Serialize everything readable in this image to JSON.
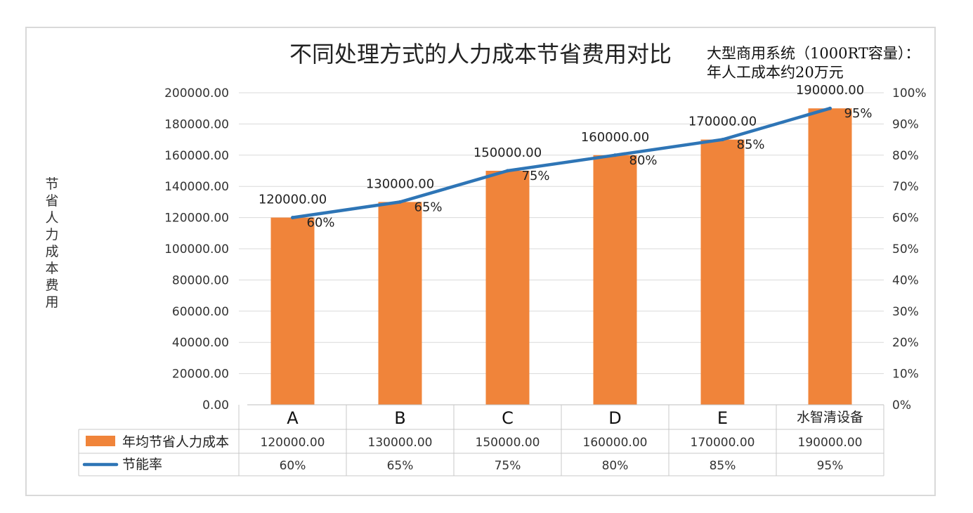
{
  "chart_data": {
    "type": "bar",
    "title": "不同处理方式的人力成本节省费用对比",
    "note_lines": [
      "大型商用系统（1000RT容量）：",
      "年人工成本约20万元"
    ],
    "ylabel": "节省人力成本费用",
    "categories": [
      "A",
      "B",
      "C",
      "D",
      "E",
      "水智清设备"
    ],
    "ylim": [
      0,
      200000
    ],
    "y2lim": [
      0,
      1
    ],
    "y_ticks": [
      "0.00",
      "20000.00",
      "40000.00",
      "60000.00",
      "80000.00",
      "100000.00",
      "120000.00",
      "140000.00",
      "160000.00",
      "180000.00",
      "200000.00"
    ],
    "y2_ticks": [
      "0%",
      "10%",
      "20%",
      "30%",
      "40%",
      "50%",
      "60%",
      "70%",
      "80%",
      "90%",
      "100%"
    ],
    "series": [
      {
        "name": "年均节省人力成本",
        "type": "bar",
        "axis": "left",
        "color": "#F0843A",
        "values": [
          120000,
          130000,
          150000,
          160000,
          170000,
          190000
        ],
        "labels": [
          "120000.00",
          "130000.00",
          "150000.00",
          "160000.00",
          "170000.00",
          "190000.00"
        ]
      },
      {
        "name": "节能率",
        "type": "line",
        "axis": "right",
        "color": "#2E75B6",
        "values": [
          0.6,
          0.65,
          0.75,
          0.8,
          0.85,
          0.95
        ],
        "labels": [
          "60%",
          "65%",
          "75%",
          "80%",
          "85%",
          "95%"
        ]
      }
    ],
    "grid": true,
    "legend": "data-table"
  }
}
